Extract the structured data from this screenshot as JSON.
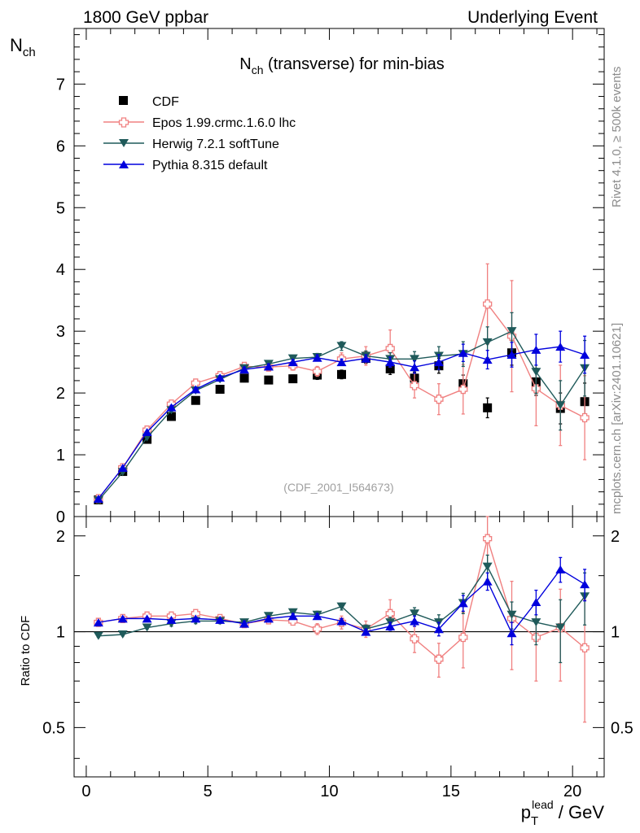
{
  "header": {
    "left_title": "1800 GeV ppbar",
    "right_title": "Underlying Event"
  },
  "side_labels": {
    "rivet": "Rivet 4.1.0, ≥ 500k events",
    "mcplots": "mcplots.cern.ch [arXiv:2401.10621]"
  },
  "chart_data": [
    {
      "type": "scatter",
      "panel": "main",
      "title": "N_ch (transverse) for min-bias",
      "title_main": "N",
      "title_sub": "ch",
      "title_rest": " (transverse) for min-bias",
      "ylabel_main": "N",
      "ylabel_sub": "ch",
      "analysis_tag": "(CDF_2001_I564673)",
      "xlim": [
        -0.5,
        21.3
      ],
      "ylim": [
        0,
        7.9
      ],
      "yticks": [
        0,
        1,
        2,
        3,
        4,
        5,
        6,
        7
      ],
      "yticklabels": [
        "0",
        "1",
        "2",
        "3",
        "4",
        "5",
        "6",
        "7"
      ],
      "legend_position": "top-left",
      "x": [
        0.5,
        1.5,
        2.5,
        3.5,
        4.5,
        5.5,
        6.5,
        7.5,
        8.5,
        9.5,
        10.5,
        11.5,
        12.5,
        13.5,
        14.5,
        15.5,
        16.5,
        17.5,
        18.5,
        19.5,
        20.5
      ],
      "series": [
        {
          "name": "CDF",
          "color": "#000000",
          "marker": "square",
          "values": [
            0.27,
            0.73,
            1.25,
            1.62,
            1.88,
            2.06,
            2.24,
            2.21,
            2.23,
            2.29,
            2.3,
            2.56,
            2.39,
            2.24,
            2.44,
            2.15,
            1.76,
            2.65,
            2.18,
            1.75,
            1.86
          ],
          "errors": [
            0.02,
            0.03,
            0.04,
            0.05,
            0.05,
            0.05,
            0.06,
            0.06,
            0.06,
            0.07,
            0.07,
            0.08,
            0.09,
            0.1,
            0.12,
            0.14,
            0.16,
            0.2,
            0.22,
            0.25,
            0.3
          ]
        },
        {
          "name": "Epos 1.99.crmc.1.6.0 lhc",
          "color": "#f08080",
          "marker": "cross",
          "values": [
            0.29,
            0.79,
            1.4,
            1.82,
            2.16,
            2.28,
            2.43,
            2.42,
            2.44,
            2.35,
            2.55,
            2.6,
            2.72,
            2.12,
            1.9,
            2.06,
            3.44,
            2.92,
            2.07,
            1.8,
            1.6
          ],
          "errors": [
            0.01,
            0.02,
            0.03,
            0.04,
            0.05,
            0.05,
            0.05,
            0.06,
            0.07,
            0.08,
            0.1,
            0.15,
            0.3,
            0.2,
            0.25,
            0.4,
            0.65,
            0.9,
            0.6,
            0.65,
            0.68
          ]
        },
        {
          "name": "Herwig 7.2.1 softTune",
          "color": "#1f5a5a",
          "marker": "triangle-down",
          "values": [
            0.26,
            0.72,
            1.28,
            1.72,
            2.04,
            2.22,
            2.4,
            2.47,
            2.56,
            2.58,
            2.76,
            2.6,
            2.55,
            2.55,
            2.6,
            2.63,
            2.82,
            3.0,
            2.34,
            1.8,
            2.4
          ],
          "errors": [
            0.01,
            0.02,
            0.02,
            0.03,
            0.03,
            0.03,
            0.04,
            0.04,
            0.05,
            0.06,
            0.07,
            0.08,
            0.1,
            0.12,
            0.15,
            0.2,
            0.25,
            0.3,
            0.35,
            0.4,
            0.45
          ]
        },
        {
          "name": "Pythia 8.315 default",
          "color": "#0000dd",
          "marker": "triangle-up",
          "values": [
            0.29,
            0.79,
            1.37,
            1.77,
            2.06,
            2.25,
            2.38,
            2.43,
            2.5,
            2.57,
            2.5,
            2.56,
            2.5,
            2.42,
            2.5,
            2.65,
            2.54,
            2.62,
            2.7,
            2.75,
            2.62
          ],
          "errors": [
            0.01,
            0.02,
            0.02,
            0.03,
            0.03,
            0.03,
            0.04,
            0.04,
            0.04,
            0.05,
            0.05,
            0.06,
            0.08,
            0.1,
            0.12,
            0.14,
            0.15,
            0.2,
            0.25,
            0.25,
            0.3
          ]
        }
      ]
    },
    {
      "type": "scatter",
      "panel": "ratio",
      "ylabel": "Ratio to CDF",
      "xlabel_main": "p",
      "xlabel_sub": "T",
      "xlabel_sup": "lead",
      "xlabel_rest": " / GeV",
      "xlim": [
        -0.5,
        21.3
      ],
      "ylim": [
        0.35,
        2.3
      ],
      "reference_line": 1,
      "yticks": [
        0.5,
        1,
        2
      ],
      "yticklabels": [
        "0.5",
        "1",
        "2"
      ],
      "xticks": [
        0,
        5,
        10,
        15,
        20
      ],
      "xticklabels": [
        "0",
        "5",
        "10",
        "15",
        "20"
      ],
      "x": [
        0.5,
        1.5,
        2.5,
        3.5,
        4.5,
        5.5,
        6.5,
        7.5,
        8.5,
        9.5,
        10.5,
        11.5,
        12.5,
        13.5,
        14.5,
        15.5,
        16.5,
        17.5,
        18.5,
        19.5,
        20.5
      ],
      "series": [
        {
          "name": "Epos 1.99.crmc.1.6.0 lhc",
          "color": "#f08080",
          "marker": "cross",
          "values": [
            1.07,
            1.1,
            1.12,
            1.12,
            1.14,
            1.1,
            1.06,
            1.09,
            1.08,
            1.02,
            1.07,
            1.02,
            1.14,
            0.95,
            0.82,
            0.96,
            1.96,
            1.1,
            0.96,
            1.03,
            0.89
          ],
          "errors": [
            0.01,
            0.02,
            0.02,
            0.02,
            0.02,
            0.02,
            0.02,
            0.03,
            0.03,
            0.04,
            0.05,
            0.06,
            0.12,
            0.09,
            0.1,
            0.19,
            0.37,
            0.34,
            0.26,
            0.33,
            0.37
          ]
        },
        {
          "name": "Herwig 7.2.1 softTune",
          "color": "#1f5a5a",
          "marker": "triangle-down",
          "values": [
            0.97,
            0.98,
            1.03,
            1.06,
            1.08,
            1.08,
            1.07,
            1.12,
            1.15,
            1.13,
            1.2,
            1.02,
            1.07,
            1.14,
            1.07,
            1.23,
            1.6,
            1.13,
            1.07,
            1.03,
            1.29
          ],
          "errors": [
            0.01,
            0.01,
            0.01,
            0.02,
            0.02,
            0.02,
            0.02,
            0.02,
            0.02,
            0.03,
            0.03,
            0.03,
            0.04,
            0.05,
            0.06,
            0.09,
            0.14,
            0.11,
            0.16,
            0.23,
            0.24
          ]
        },
        {
          "name": "Pythia 8.315 default",
          "color": "#0000dd",
          "marker": "triangle-up",
          "values": [
            1.07,
            1.1,
            1.1,
            1.09,
            1.1,
            1.09,
            1.06,
            1.1,
            1.12,
            1.12,
            1.08,
            1.0,
            1.04,
            1.08,
            1.02,
            1.23,
            1.44,
            0.99,
            1.24,
            1.57,
            1.41
          ],
          "errors": [
            0.01,
            0.01,
            0.01,
            0.01,
            0.01,
            0.01,
            0.02,
            0.02,
            0.02,
            0.02,
            0.02,
            0.02,
            0.03,
            0.04,
            0.05,
            0.07,
            0.09,
            0.08,
            0.11,
            0.14,
            0.16
          ]
        }
      ]
    }
  ]
}
